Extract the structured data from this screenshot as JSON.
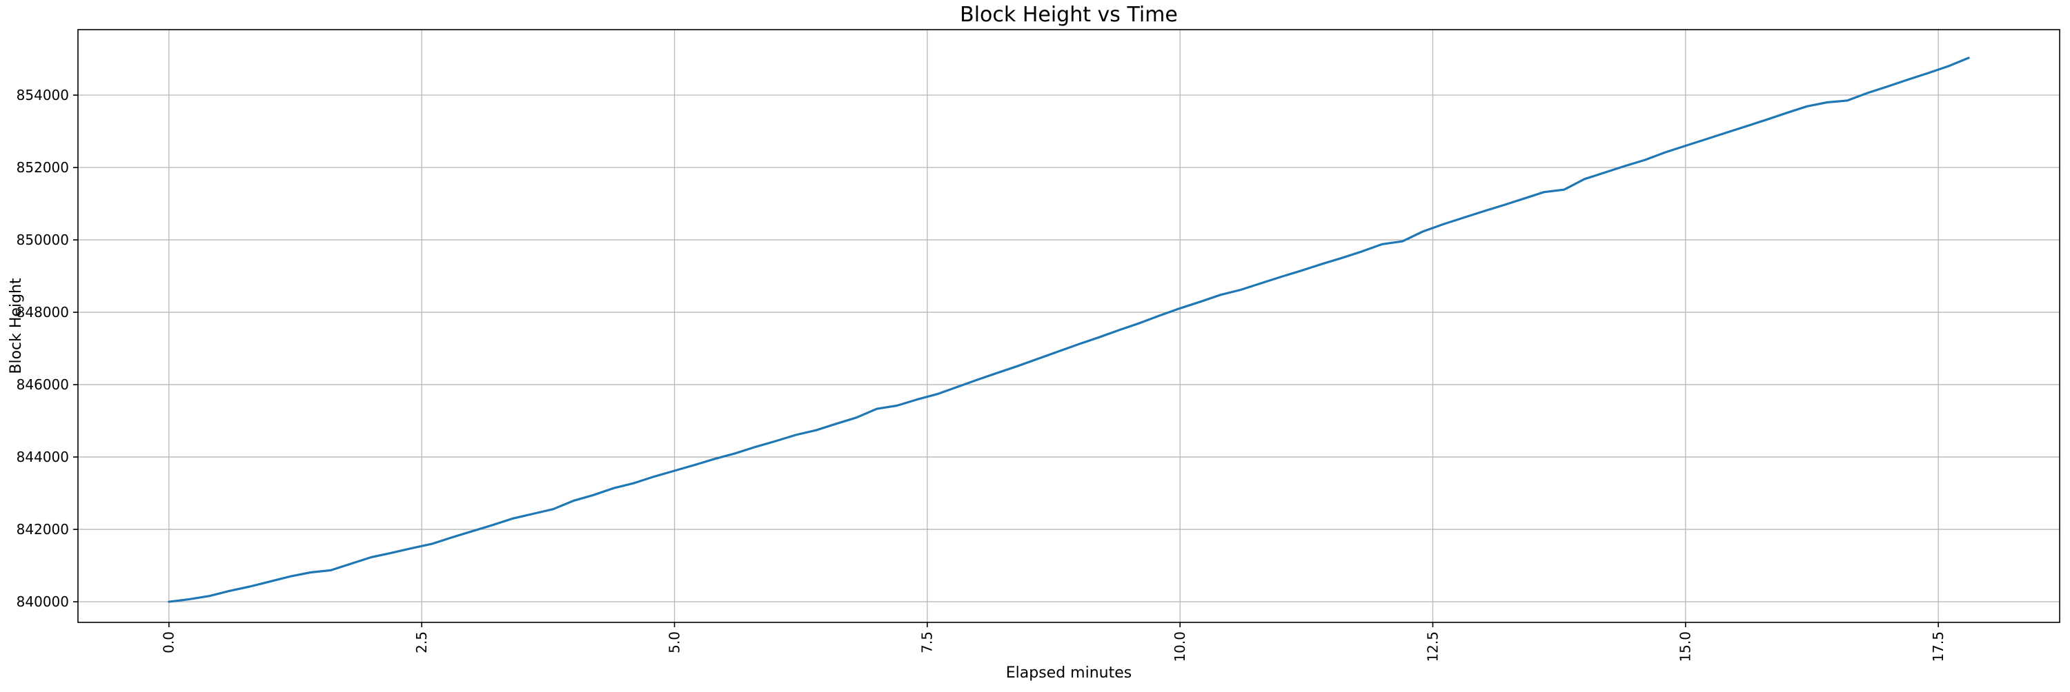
{
  "figure": {
    "background": "#ffffff",
    "text_color": "#000000",
    "spine_color": "#000000"
  },
  "chart_data": {
    "type": "line",
    "title": "Block Height vs Time",
    "xlabel": "Elapsed minutes",
    "ylabel": "Block Height",
    "legend": null,
    "grid": true,
    "grid_color": "#b8b8b8",
    "line_color": "#1f77b4",
    "xlim": [
      -0.9,
      18.7
    ],
    "ylim": [
      839430,
      855810
    ],
    "x_ticks": [
      0.0,
      2.5,
      5.0,
      7.5,
      10.0,
      12.5,
      15.0,
      17.5
    ],
    "x_tick_labels": [
      "0.0",
      "2.5",
      "5.0",
      "7.5",
      "10.0",
      "12.5",
      "15.0",
      "17.5"
    ],
    "y_ticks": [
      840000,
      842000,
      844000,
      846000,
      848000,
      850000,
      852000,
      854000
    ],
    "y_tick_labels": [
      "840000",
      "842000",
      "844000",
      "846000",
      "848000",
      "850000",
      "852000",
      "854000"
    ],
    "series": [
      {
        "name": "block-height",
        "x": [
          0.0,
          0.2,
          0.4,
          0.6,
          0.8,
          1.0,
          1.2,
          1.4,
          1.6,
          1.8,
          2.0,
          2.2,
          2.4,
          2.6,
          2.8,
          3.0,
          3.2,
          3.4,
          3.6,
          3.8,
          4.0,
          4.2,
          4.4,
          4.6,
          4.8,
          5.0,
          5.2,
          5.4,
          5.6,
          5.8,
          6.0,
          6.2,
          6.4,
          6.6,
          6.8,
          7.0,
          7.2,
          7.4,
          7.6,
          7.8,
          8.0,
          8.2,
          8.4,
          8.6,
          8.8,
          9.0,
          9.2,
          9.4,
          9.6,
          9.8,
          10.0,
          10.2,
          10.4,
          10.6,
          10.8,
          11.0,
          11.2,
          11.4,
          11.6,
          11.8,
          12.0,
          12.2,
          12.4,
          12.6,
          12.8,
          13.0,
          13.2,
          13.4,
          13.6,
          13.8,
          14.0,
          14.2,
          14.4,
          14.6,
          14.8,
          15.0,
          15.2,
          15.4,
          15.6,
          15.8,
          16.0,
          16.2,
          16.4,
          16.6,
          16.8,
          17.0,
          17.2,
          17.4,
          17.6,
          17.8
        ],
        "y": [
          840000,
          840070,
          840160,
          840300,
          840420,
          840560,
          840700,
          840810,
          840870,
          841050,
          841230,
          841350,
          841480,
          841600,
          841780,
          841950,
          842120,
          842300,
          842430,
          842560,
          842790,
          842950,
          843140,
          843280,
          843460,
          843620,
          843780,
          843950,
          844100,
          844280,
          844440,
          844610,
          844740,
          844920,
          845090,
          845330,
          845420,
          845590,
          845740,
          845940,
          846140,
          846330,
          846520,
          846720,
          846920,
          847120,
          847310,
          847510,
          847700,
          847910,
          848110,
          848290,
          848480,
          848620,
          848800,
          848980,
          849150,
          849330,
          849500,
          849680,
          849880,
          849960,
          850230,
          850430,
          850610,
          850790,
          850960,
          851140,
          851320,
          851390,
          851680,
          851860,
          852040,
          852210,
          852420,
          852600,
          852780,
          852960,
          853140,
          853320,
          853510,
          853690,
          853800,
          853850,
          854060,
          854240,
          854430,
          854610,
          854800,
          855030
        ]
      }
    ]
  }
}
